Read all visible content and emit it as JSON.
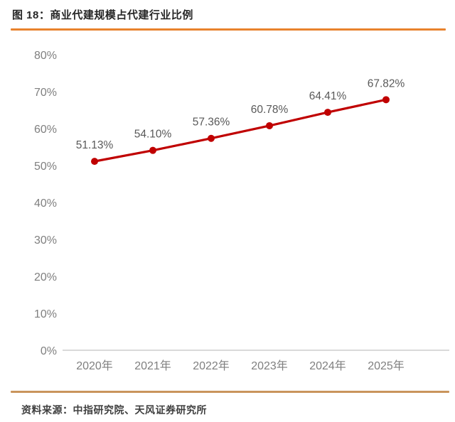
{
  "header": {
    "title": "图 18：商业代建规模占代建行业比例"
  },
  "footer": {
    "source": "资料来源：中指研究院、天风证券研究所"
  },
  "colors": {
    "title_rule": "#E8822D",
    "footer_rule": "#C9945C",
    "series_line": "#C00000",
    "marker_fill": "#C00000",
    "axis_text": "#7F7F7F",
    "data_label_text": "#595959",
    "axis_line": "#D9D9D9"
  },
  "chart_data": {
    "type": "line",
    "title": "商业代建规模占代建行业比例",
    "categories": [
      "2020年",
      "2021年",
      "2022年",
      "2023年",
      "2024年",
      "2025年"
    ],
    "values": [
      51.13,
      54.1,
      57.36,
      60.78,
      64.41,
      67.82
    ],
    "data_labels": [
      "51.13%",
      "54.10%",
      "57.36%",
      "60.78%",
      "64.41%",
      "67.82%"
    ],
    "xlabel": "",
    "ylabel": "",
    "ylim": [
      0,
      80
    ],
    "ytick_step": 10,
    "ytick_suffix": "%",
    "grid": false,
    "legend": "none",
    "marker": "circle"
  }
}
